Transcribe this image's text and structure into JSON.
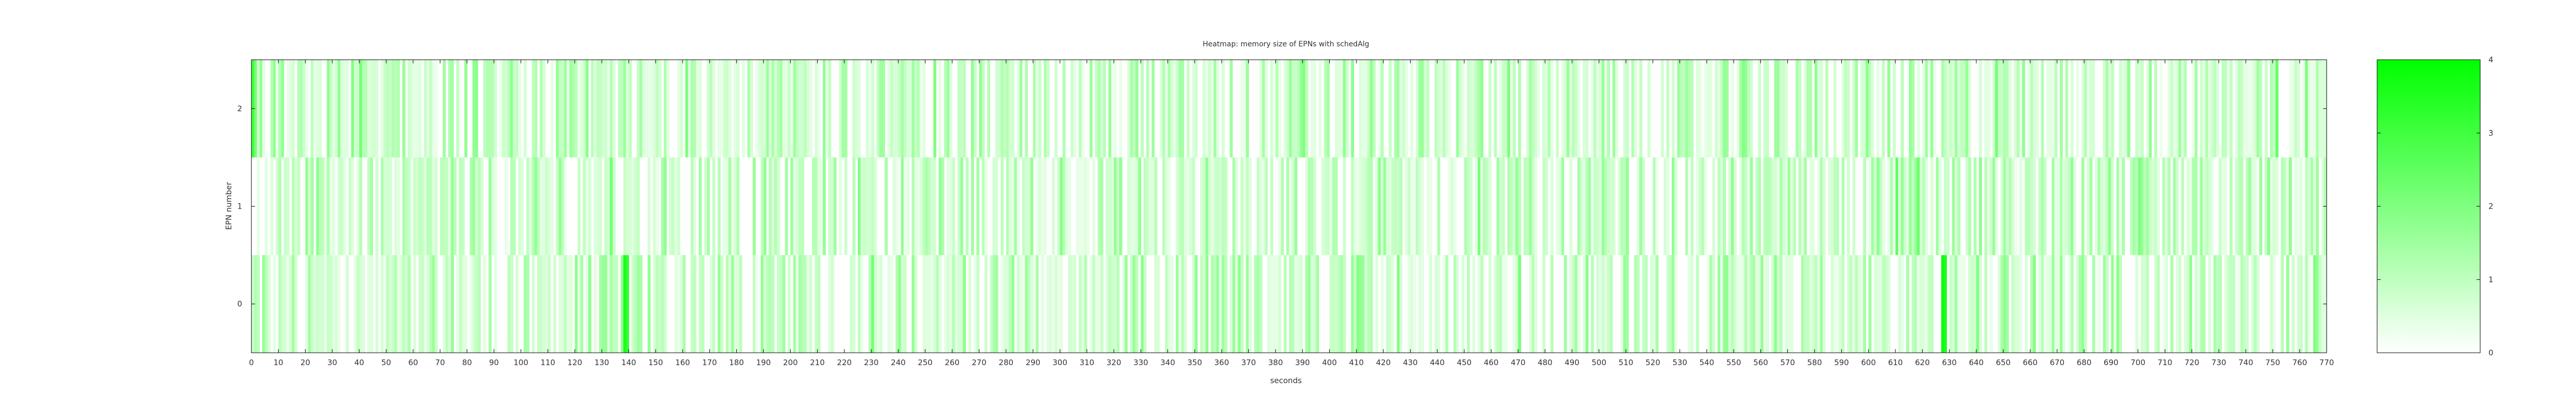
{
  "chart_data": {
    "type": "heatmap",
    "title": "Heatmap: memory size of EPNs with schedAlg",
    "xlabel": "seconds",
    "ylabel": "EPN number",
    "x_range": [
      0,
      770
    ],
    "x_ticks": [
      0,
      10,
      20,
      30,
      40,
      50,
      60,
      70,
      80,
      90,
      100,
      110,
      120,
      130,
      140,
      150,
      160,
      170,
      180,
      190,
      200,
      210,
      220,
      230,
      240,
      250,
      260,
      270,
      280,
      290,
      300,
      310,
      320,
      330,
      340,
      350,
      360,
      370,
      380,
      390,
      400,
      410,
      420,
      430,
      440,
      450,
      460,
      470,
      480,
      490,
      500,
      510,
      520,
      530,
      540,
      550,
      560,
      570,
      580,
      590,
      600,
      610,
      620,
      630,
      640,
      650,
      660,
      670,
      680,
      690,
      700,
      710,
      720,
      730,
      740,
      750,
      760,
      770
    ],
    "y_categories": [
      "0",
      "1",
      "2"
    ],
    "colorbar": {
      "min": 0,
      "max": 4,
      "ticks": [
        "0",
        "1",
        "2",
        "3",
        "4"
      ],
      "low_color": "#ffffff",
      "high_color": "#00ff00"
    },
    "bin_seconds": 1,
    "rows": [
      {
        "epn": "0",
        "hot_spots": [
          [
            138,
            3.6
          ],
          [
            139,
            3.2
          ],
          [
            627,
            3.9
          ],
          [
            628,
            3.5
          ],
          [
            230,
            2.2
          ],
          [
            240,
            1.8
          ],
          [
            410,
            1.9
          ],
          [
            425,
            2.0
          ],
          [
            470,
            2.1
          ],
          [
            495,
            1.8
          ],
          [
            640,
            2.0
          ],
          [
            661,
            1.9
          ],
          [
            690,
            1.7
          ],
          [
            765,
            2.0
          ]
        ]
      },
      {
        "epn": "1",
        "hot_spots": [
          [
            133,
            2.2
          ],
          [
            225,
            2.0
          ],
          [
            300,
            1.9
          ],
          [
            418,
            1.8
          ],
          [
            455,
            2.1
          ],
          [
            610,
            2.5
          ],
          [
            618,
            2.3
          ],
          [
            700,
            2.0
          ],
          [
            748,
            1.8
          ]
        ]
      },
      {
        "epn": "2",
        "hot_spots": [
          [
            0,
            3.0
          ],
          [
            1,
            2.2
          ],
          [
            37,
            2.0
          ],
          [
            40,
            2.2
          ],
          [
            161,
            2.1
          ],
          [
            253,
            2.0
          ],
          [
            390,
            2.0
          ],
          [
            466,
            2.1
          ],
          [
            553,
            1.9
          ],
          [
            647,
            2.2
          ],
          [
            751,
            2.4
          ],
          [
            762,
            2.1
          ]
        ]
      }
    ]
  }
}
